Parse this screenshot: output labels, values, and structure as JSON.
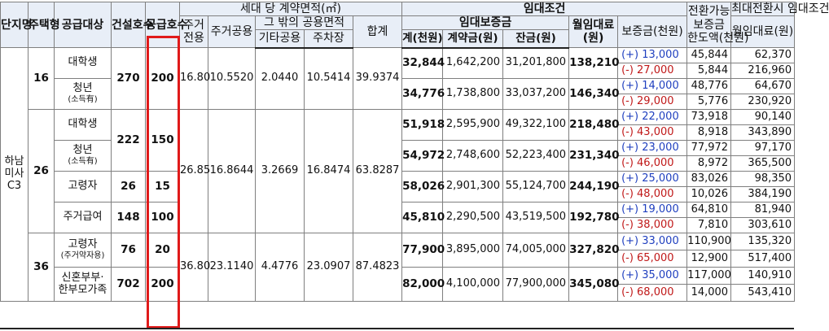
{
  "headers": {
    "complex": "단지명",
    "type": "주택형",
    "target": "공급대상",
    "built_units": "건설호수",
    "supply_units": "공급호수",
    "area_group": "세대 당 계약면적(㎡)",
    "res_exclusive": "주거전용",
    "res_common": "주거공용",
    "other_common_group": "그 밖의 공용면적",
    "other_common": "기타공용",
    "parking": "주차장",
    "area_total": "합계",
    "lease_group": "임대조건",
    "deposit_group": "임대보증금",
    "deposit_total": "계(천원)",
    "contract_fee": "계약금(원)",
    "balance": "잔금(원)",
    "monthly_rent": "월임대료(원)",
    "conversion_group": "전환가능보증금한도액(천원)",
    "conversion_line1": "전환가능",
    "conversion_line2": "보증금",
    "conversion_line3": "한도액(천원)",
    "max_conv_group": "최대전환시 임대조건",
    "max_deposit": "보증금(천원)",
    "max_rent": "월임대료(원)"
  },
  "complex_name": "하남미사C3",
  "types": [
    {
      "type": "16",
      "exclusive": "16.80",
      "common": "10.5520",
      "other": "2.0440",
      "parking": "10.5414",
      "total": "39.9374"
    },
    {
      "type": "26",
      "exclusive": "26.85",
      "common": "16.8644",
      "other": "3.2669",
      "parking": "16.8474",
      "total": "63.8287"
    },
    {
      "type": "36",
      "exclusive": "36.80",
      "common": "23.1140",
      "other": "4.4776",
      "parking": "23.0907",
      "total": "87.4823"
    }
  ],
  "rows": [
    {
      "target": "대학생",
      "sub": "",
      "built": "270",
      "supply": "200",
      "deposit": "32,844",
      "contract": "1,642,200",
      "balance": "31,201,800",
      "rent": "138,210",
      "plus": "(+) 13,000",
      "minus": "(-) 27,000",
      "plus_dep": "45,844",
      "plus_rent": "62,370",
      "minus_dep": "5,844",
      "minus_rent": "216,960"
    },
    {
      "target": "청년",
      "sub": "(소득有)",
      "built": "",
      "supply": "",
      "deposit": "34,776",
      "contract": "1,738,800",
      "balance": "33,037,200",
      "rent": "146,340",
      "plus": "(+) 14,000",
      "minus": "(-) 29,000",
      "plus_dep": "48,776",
      "plus_rent": "64,670",
      "minus_dep": "5,776",
      "minus_rent": "230,920"
    },
    {
      "target": "대학생",
      "sub": "",
      "built": "222",
      "supply": "150",
      "deposit": "51,918",
      "contract": "2,595,900",
      "balance": "49,322,100",
      "rent": "218,480",
      "plus": "(+) 22,000",
      "minus": "(-) 43,000",
      "plus_dep": "73,918",
      "plus_rent": "90,140",
      "minus_dep": "8,918",
      "minus_rent": "343,890"
    },
    {
      "target": "청년",
      "sub": "(소득有)",
      "built": "",
      "supply": "",
      "deposit": "54,972",
      "contract": "2,748,600",
      "balance": "52,223,400",
      "rent": "231,340",
      "plus": "(+) 23,000",
      "minus": "(-) 46,000",
      "plus_dep": "77,972",
      "plus_rent": "97,170",
      "minus_dep": "8,972",
      "minus_rent": "365,500"
    },
    {
      "target": "고령자",
      "sub": "",
      "built": "26",
      "supply": "15",
      "deposit": "58,026",
      "contract": "2,901,300",
      "balance": "55,124,700",
      "rent": "244,190",
      "plus": "(+) 25,000",
      "minus": "(-) 48,000",
      "plus_dep": "83,026",
      "plus_rent": "98,350",
      "minus_dep": "10,026",
      "minus_rent": "384,190"
    },
    {
      "target": "주거급여",
      "sub": "",
      "built": "148",
      "supply": "100",
      "deposit": "45,810",
      "contract": "2,290,500",
      "balance": "43,519,500",
      "rent": "192,780",
      "plus": "(+) 19,000",
      "minus": "(-) 38,000",
      "plus_dep": "64,810",
      "plus_rent": "81,940",
      "minus_dep": "7,810",
      "minus_rent": "303,610"
    },
    {
      "target": "고령자",
      "sub": "(주거약자용)",
      "built": "76",
      "supply": "20",
      "deposit": "77,900",
      "contract": "3,895,000",
      "balance": "74,005,000",
      "rent": "327,820",
      "plus": "(+) 33,000",
      "minus": "(-) 65,000",
      "plus_dep": "110,900",
      "plus_rent": "135,320",
      "minus_dep": "12,900",
      "minus_rent": "517,400"
    },
    {
      "target": "신혼부부·",
      "sub": "한부모가족",
      "built": "702",
      "supply": "200",
      "deposit": "82,000",
      "contract": "4,100,000",
      "balance": "77,900,000",
      "rent": "345,080",
      "plus": "(+) 35,000",
      "minus": "(-) 68,000",
      "plus_dep": "117,000",
      "plus_rent": "140,910",
      "minus_dep": "14,000",
      "minus_rent": "543,410"
    }
  ]
}
